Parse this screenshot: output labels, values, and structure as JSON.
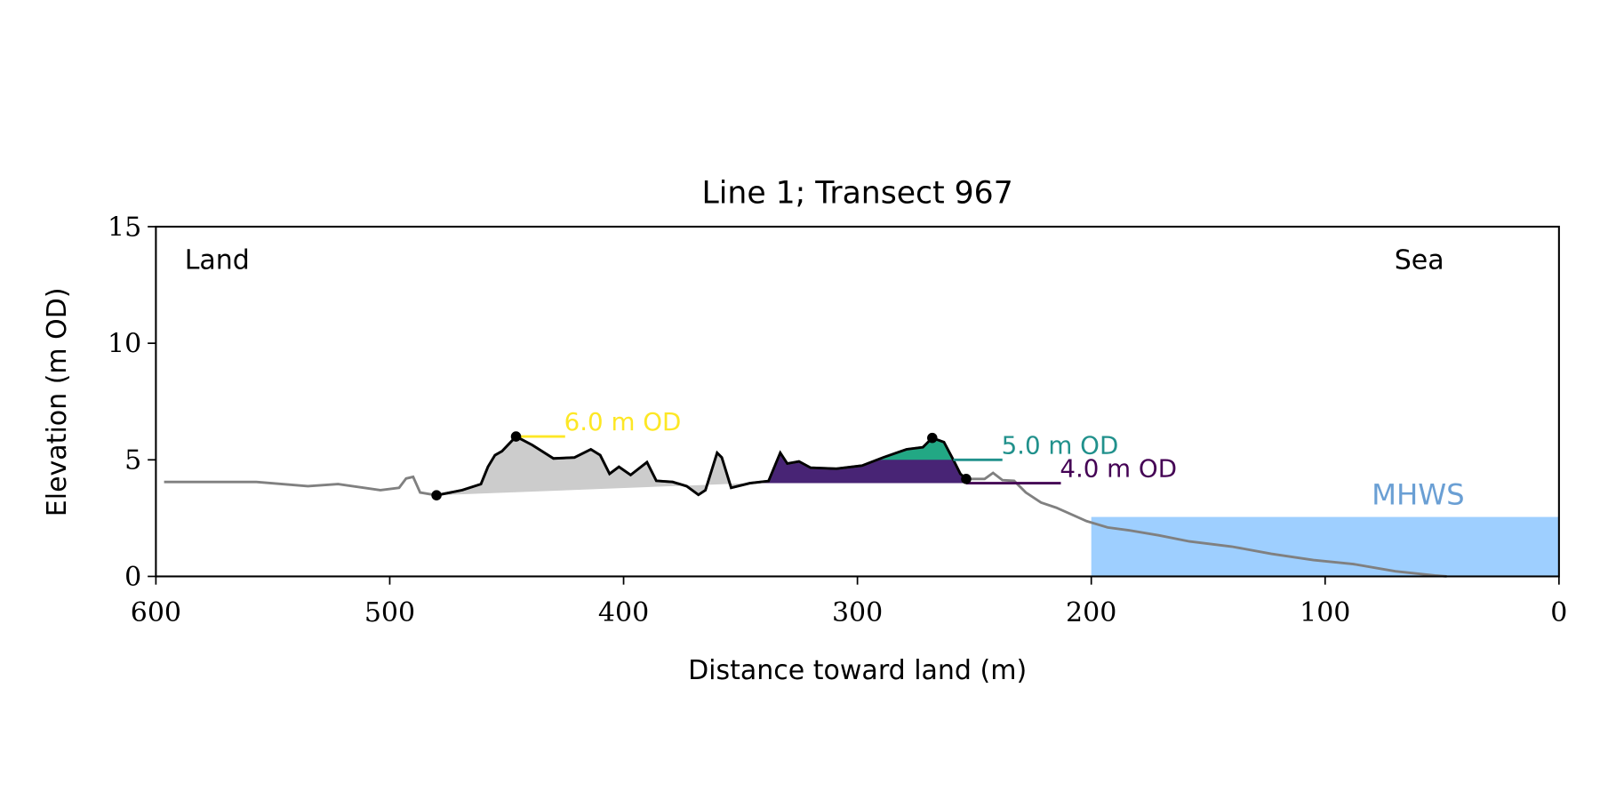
{
  "chart_data": {
    "type": "line",
    "title": "Line 1; Transect 967",
    "xlabel": "Distance toward land (m)",
    "ylabel": "Elevation (m OD)",
    "xlim": [
      600,
      0
    ],
    "ylim": [
      0,
      15
    ],
    "xticks": [
      600,
      500,
      400,
      300,
      200,
      100,
      0
    ],
    "yticks": [
      0,
      5,
      10,
      15
    ],
    "grid": false,
    "corner_labels": {
      "left": "Land",
      "right": "Sea"
    },
    "profile": [
      [
        596.5,
        4.05
      ],
      [
        557,
        4.05
      ],
      [
        535,
        3.87
      ],
      [
        522,
        3.96
      ],
      [
        504,
        3.7
      ],
      [
        496,
        3.8
      ],
      [
        493,
        4.2
      ],
      [
        490,
        4.27
      ],
      [
        487,
        3.6
      ],
      [
        480,
        3.48
      ],
      [
        469,
        3.7
      ],
      [
        461,
        3.96
      ],
      [
        458,
        4.7
      ],
      [
        455,
        5.2
      ],
      [
        452,
        5.37
      ],
      [
        446,
        6.0
      ],
      [
        439,
        5.63
      ],
      [
        430,
        5.06
      ],
      [
        421,
        5.1
      ],
      [
        414,
        5.45
      ],
      [
        410,
        5.2
      ],
      [
        406,
        4.4
      ],
      [
        402,
        4.7
      ],
      [
        397,
        4.35
      ],
      [
        390,
        4.9
      ],
      [
        386,
        4.1
      ],
      [
        379,
        4.05
      ],
      [
        373,
        3.87
      ],
      [
        368,
        3.5
      ],
      [
        365,
        3.7
      ],
      [
        360,
        5.3
      ],
      [
        358,
        5.1
      ],
      [
        354,
        3.8
      ],
      [
        346,
        4.0
      ],
      [
        338,
        4.09
      ],
      [
        333,
        5.3
      ],
      [
        330,
        4.84
      ],
      [
        325,
        4.93
      ],
      [
        320,
        4.66
      ],
      [
        309,
        4.62
      ],
      [
        298,
        4.75
      ],
      [
        289,
        5.1
      ],
      [
        279,
        5.45
      ],
      [
        272,
        5.54
      ],
      [
        268,
        5.94
      ],
      [
        263,
        5.76
      ],
      [
        259,
        5.0
      ],
      [
        256,
        4.4
      ],
      [
        253.5,
        4.18
      ],
      [
        245.6,
        4.18
      ],
      [
        242,
        4.44
      ],
      [
        238,
        4.13
      ],
      [
        233,
        4.1
      ],
      [
        228,
        3.6
      ],
      [
        221.5,
        3.17
      ],
      [
        215,
        2.95
      ],
      [
        202,
        2.37
      ],
      [
        193,
        2.1
      ],
      [
        184,
        1.98
      ],
      [
        171,
        1.76
      ],
      [
        158,
        1.5
      ],
      [
        140,
        1.28
      ],
      [
        123,
        0.97
      ],
      [
        105,
        0.7
      ],
      [
        88,
        0.53
      ],
      [
        70,
        0.22
      ],
      [
        53,
        0.04
      ],
      [
        48,
        0.0
      ]
    ],
    "dune_section": [
      480,
      253.5
    ],
    "dune_markers": [
      [
        480,
        3.48
      ],
      [
        446,
        6.0
      ],
      [
        268,
        5.94
      ],
      [
        253.5,
        4.18
      ]
    ],
    "base_fill": {
      "from": [
        480,
        3.48
      ],
      "to": [
        346,
        4.0
      ],
      "color": "#cccccc"
    },
    "levels": [
      {
        "label": "6.0 m OD",
        "value": 6.0,
        "color": "#fde725",
        "line": [
          446,
          425
        ],
        "fill": null
      },
      {
        "label": "5.0 m OD",
        "value": 5.0,
        "color": "#21918c",
        "line": [
          259,
          238
        ],
        "fill": {
          "range": [
            291,
            258
          ],
          "color": "#22a884"
        }
      },
      {
        "label": "4.0 m OD",
        "value": 4.0,
        "color": "#440154",
        "line": [
          253.5,
          213
        ],
        "fill": {
          "range": [
            346,
            253.5
          ],
          "color": "#482475"
        }
      }
    ],
    "mhws": {
      "label": "MHWS",
      "value": 2.55,
      "range": [
        200,
        0
      ],
      "fill_color": "#9ecfff",
      "label_color": "#6a9fd4"
    },
    "profile_color": "#808080",
    "dune_line_color": "#000000"
  }
}
